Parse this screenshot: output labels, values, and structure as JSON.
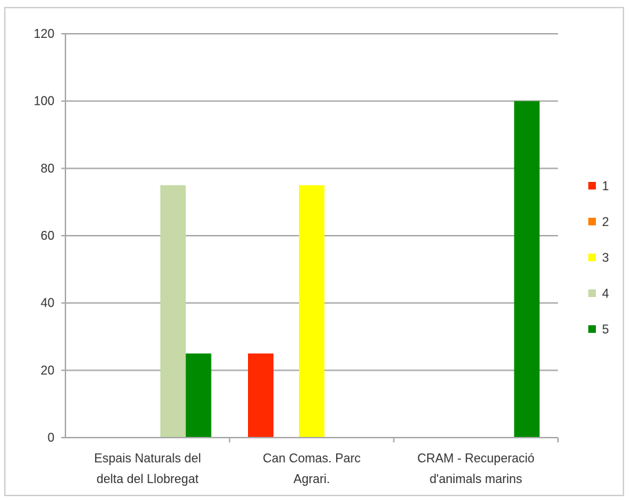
{
  "chart_data": {
    "type": "bar",
    "categories": [
      [
        "Espais Naturals del",
        "delta del Llobregat"
      ],
      [
        "Can Comas. Parc",
        "Agrari."
      ],
      [
        "CRAM - Recuperació",
        "d'animals marins"
      ]
    ],
    "series": [
      {
        "name": "1",
        "color": "#ff2a00",
        "values": [
          0,
          25,
          0
        ]
      },
      {
        "name": "2",
        "color": "#ff7f00",
        "values": [
          0,
          0,
          0
        ]
      },
      {
        "name": "3",
        "color": "#ffff00",
        "values": [
          0,
          75,
          0
        ]
      },
      {
        "name": "4",
        "color": "#c6d9a6",
        "values": [
          75,
          0,
          0
        ]
      },
      {
        "name": "5",
        "color": "#008a00",
        "values": [
          25,
          0,
          100
        ]
      }
    ],
    "ylim": [
      0,
      120
    ],
    "yticks": [
      0,
      20,
      40,
      60,
      80,
      100,
      120
    ],
    "grid": true,
    "legend": "right",
    "title": "",
    "xlabel": "",
    "ylabel": ""
  }
}
